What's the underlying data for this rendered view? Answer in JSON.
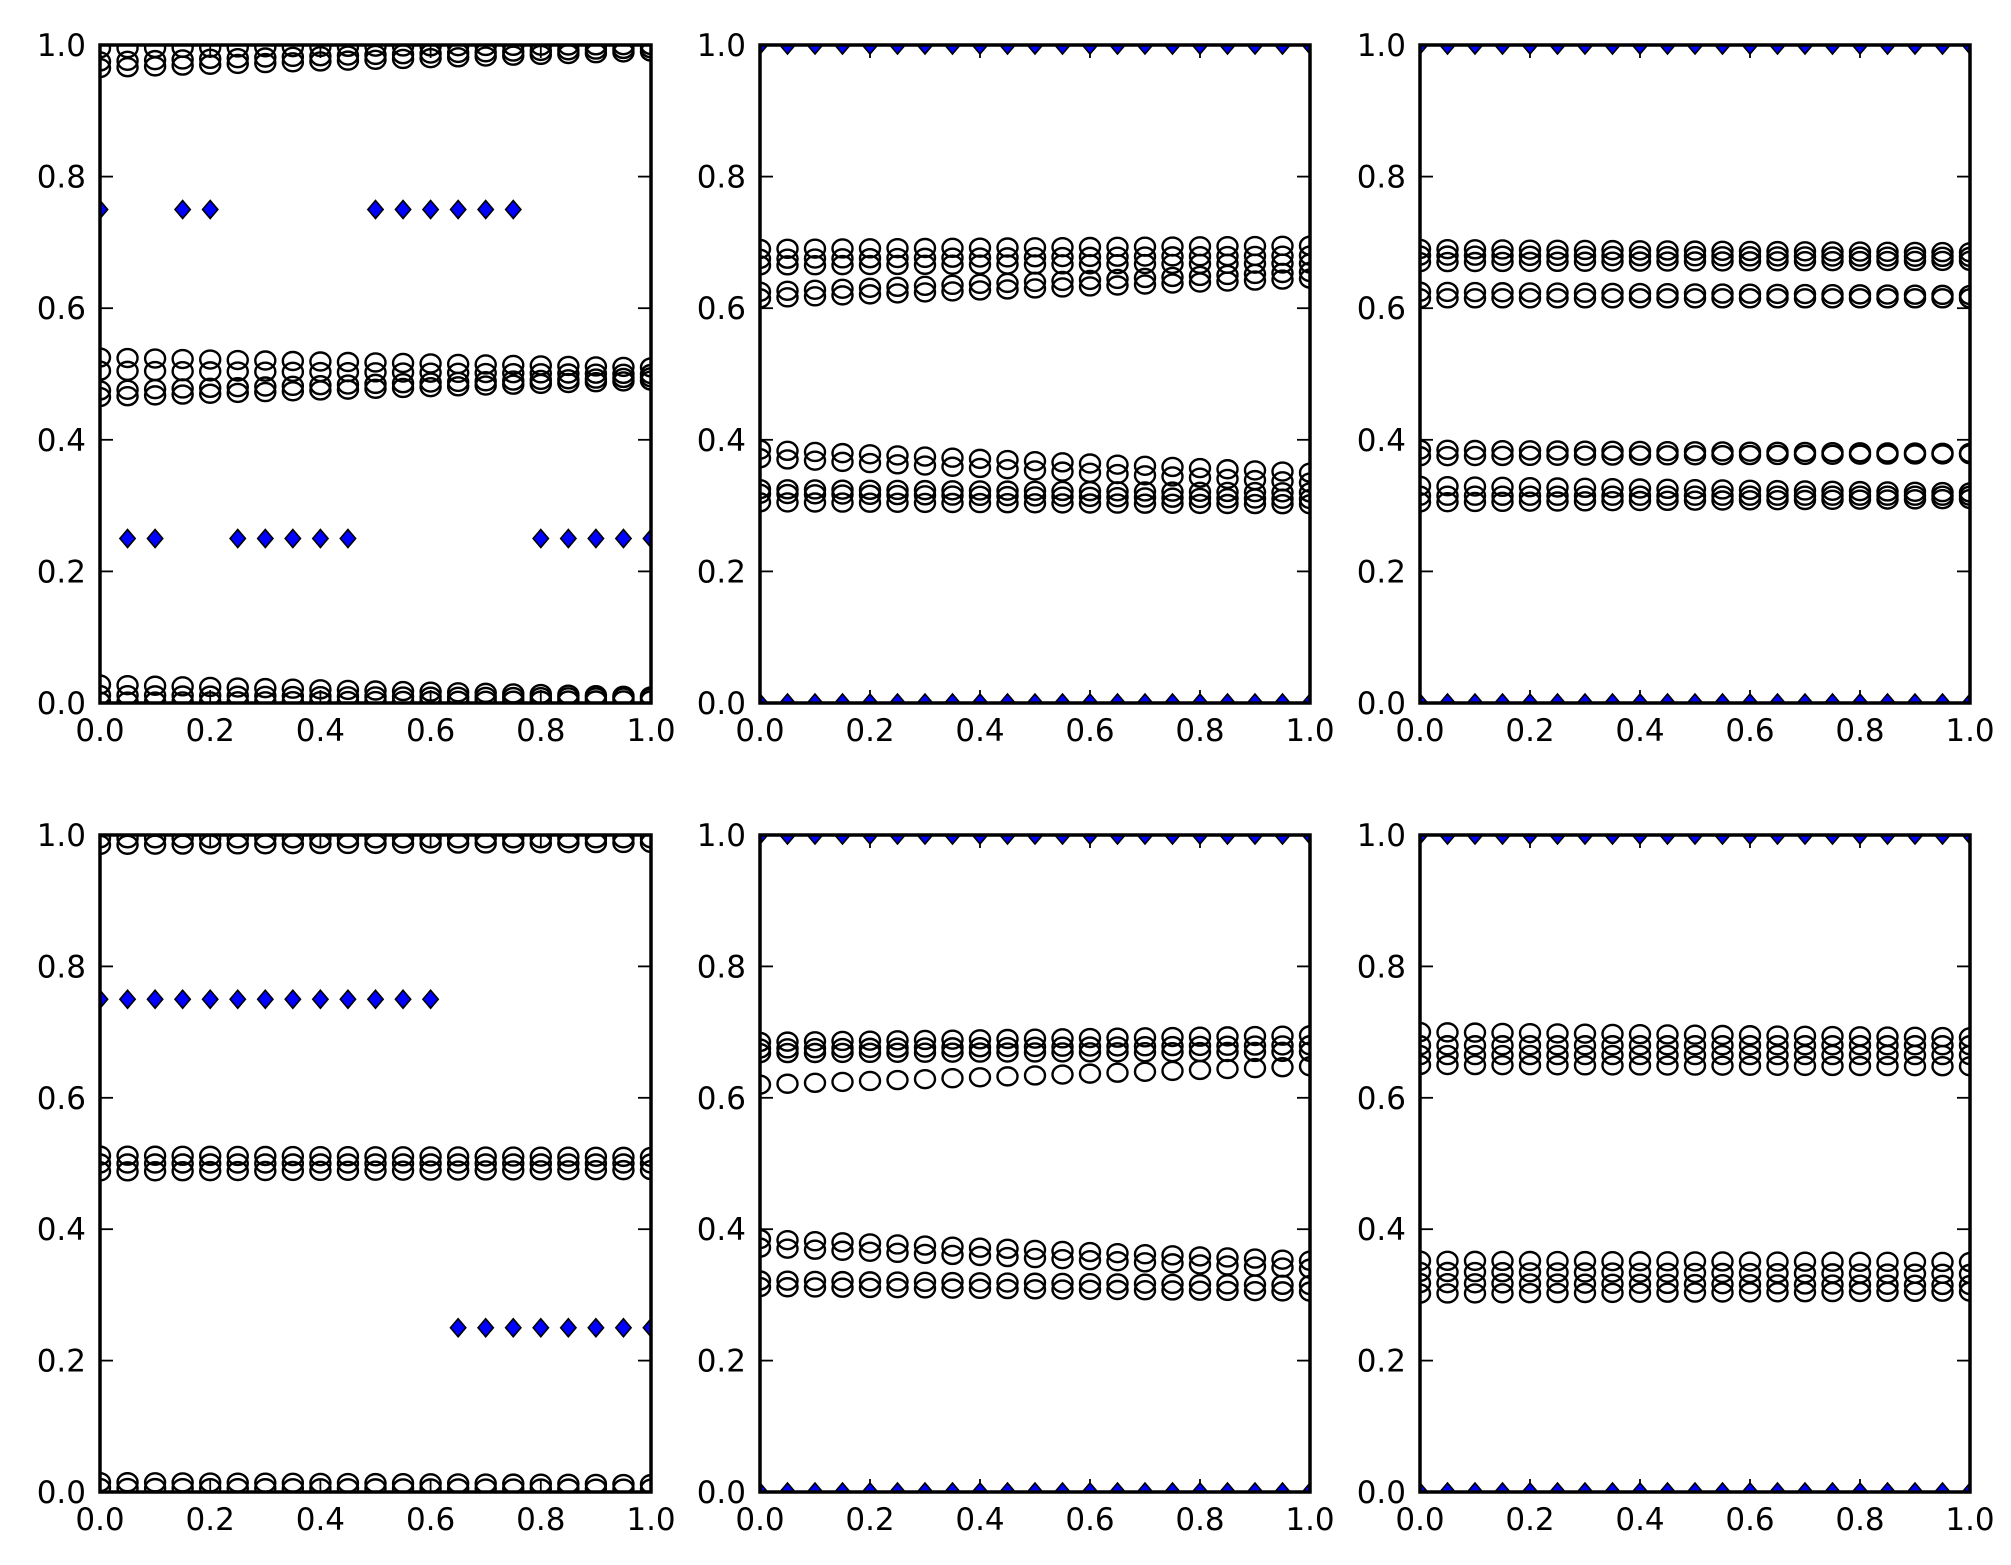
{
  "chart_data": [
    {
      "type": "scatter",
      "panel": "top-left",
      "xlim": [
        0,
        1
      ],
      "ylim": [
        0,
        1
      ],
      "xticks": [
        "0.0",
        "0.2",
        "0.4",
        "0.6",
        "0.8",
        "1.0"
      ],
      "yticks": [
        "0.0",
        "0.2",
        "0.4",
        "0.6",
        "0.8",
        "1.0"
      ],
      "x": [
        0,
        0.05,
        0.1,
        0.15,
        0.2,
        0.25,
        0.3,
        0.35,
        0.4,
        0.45,
        0.5,
        0.55,
        0.6,
        0.65,
        0.7,
        0.75,
        0.8,
        0.85,
        0.9,
        0.95,
        1.0
      ],
      "series": [
        {
          "marker": "circle",
          "start": 0.965,
          "end": 0.99
        },
        {
          "marker": "circle",
          "start": 0.975,
          "end": 0.995
        },
        {
          "marker": "circle",
          "start": 0.995,
          "end": 1.0
        },
        {
          "marker": "circle",
          "start": 0.525,
          "end": 0.51
        },
        {
          "marker": "circle",
          "start": 0.505,
          "end": 0.5
        },
        {
          "marker": "circle",
          "start": 0.465,
          "end": 0.49
        },
        {
          "marker": "circle",
          "start": 0.475,
          "end": 0.495
        },
        {
          "marker": "circle",
          "start": 0.028,
          "end": 0.01
        },
        {
          "marker": "circle",
          "start": 0.012,
          "end": 0.008
        },
        {
          "marker": "circle",
          "start": 0.002,
          "end": 0.004
        },
        {
          "marker": "diamond",
          "y": [
            0.75,
            0.25,
            0.25,
            0.75,
            0.75,
            0.25,
            0.25,
            0.25,
            0.25,
            0.25,
            0.75,
            0.75,
            0.75,
            0.75,
            0.75,
            0.75,
            0.25,
            0.25,
            0.25,
            0.25,
            0.25
          ]
        }
      ]
    },
    {
      "type": "scatter",
      "panel": "top-middle",
      "xlim": [
        0,
        1
      ],
      "ylim": [
        0,
        1
      ],
      "xticks": [
        "0.0",
        "0.2",
        "0.4",
        "0.6",
        "0.8",
        "1.0"
      ],
      "yticks": [
        "0.0",
        "0.2",
        "0.4",
        "0.6",
        "0.8",
        "1.0"
      ],
      "x": [
        0,
        0.05,
        0.1,
        0.15,
        0.2,
        0.25,
        0.3,
        0.35,
        0.4,
        0.45,
        0.5,
        0.55,
        0.6,
        0.65,
        0.7,
        0.75,
        0.8,
        0.85,
        0.9,
        0.95,
        1.0
      ],
      "series": [
        {
          "marker": "circle",
          "start": 0.69,
          "end": 0.695
        },
        {
          "marker": "circle",
          "start": 0.675,
          "end": 0.68
        },
        {
          "marker": "circle",
          "start": 0.665,
          "end": 0.668
        },
        {
          "marker": "circle",
          "start": 0.625,
          "end": 0.655
        },
        {
          "marker": "circle",
          "start": 0.615,
          "end": 0.645
        },
        {
          "marker": "circle",
          "start": 0.385,
          "end": 0.35
        },
        {
          "marker": "circle",
          "start": 0.372,
          "end": 0.335
        },
        {
          "marker": "circle",
          "start": 0.325,
          "end": 0.32
        },
        {
          "marker": "circle",
          "start": 0.318,
          "end": 0.31
        },
        {
          "marker": "circle",
          "start": 0.305,
          "end": 0.302
        },
        {
          "marker": "diamond",
          "y": [
            1,
            1,
            1,
            1,
            1,
            1,
            1,
            1,
            1,
            1,
            1,
            1,
            1,
            1,
            1,
            1,
            1,
            1,
            1,
            1,
            1
          ]
        },
        {
          "marker": "diamond",
          "y": [
            0,
            0,
            0,
            0,
            0,
            0,
            0,
            0,
            0,
            0,
            0,
            0,
            0,
            0,
            0,
            0,
            0,
            0,
            0,
            0,
            0
          ]
        }
      ]
    },
    {
      "type": "scatter",
      "panel": "top-right",
      "xlim": [
        0,
        1
      ],
      "ylim": [
        0,
        1
      ],
      "xticks": [
        "0.0",
        "0.2",
        "0.4",
        "0.6",
        "0.8",
        "1.0"
      ],
      "yticks": [
        "0.0",
        "0.2",
        "0.4",
        "0.6",
        "0.8",
        "1.0"
      ],
      "x": [
        0,
        0.05,
        0.1,
        0.15,
        0.2,
        0.25,
        0.3,
        0.35,
        0.4,
        0.45,
        0.5,
        0.55,
        0.6,
        0.65,
        0.7,
        0.75,
        0.8,
        0.85,
        0.9,
        0.95,
        1.0
      ],
      "series": [
        {
          "marker": "circle",
          "start": 0.69,
          "end": 0.685
        },
        {
          "marker": "circle",
          "start": 0.68,
          "end": 0.678
        },
        {
          "marker": "circle",
          "start": 0.67,
          "end": 0.672
        },
        {
          "marker": "circle",
          "start": 0.625,
          "end": 0.62
        },
        {
          "marker": "circle",
          "start": 0.615,
          "end": 0.615
        },
        {
          "marker": "circle",
          "start": 0.385,
          "end": 0.38
        },
        {
          "marker": "circle",
          "start": 0.375,
          "end": 0.378
        },
        {
          "marker": "circle",
          "start": 0.33,
          "end": 0.32
        },
        {
          "marker": "circle",
          "start": 0.315,
          "end": 0.315
        },
        {
          "marker": "circle",
          "start": 0.305,
          "end": 0.31
        },
        {
          "marker": "diamond",
          "y": [
            1,
            1,
            1,
            1,
            1,
            1,
            1,
            1,
            1,
            1,
            1,
            1,
            1,
            1,
            1,
            1,
            1,
            1,
            1,
            1,
            1
          ]
        },
        {
          "marker": "diamond",
          "y": [
            0,
            0,
            0,
            0,
            0,
            0,
            0,
            0,
            0,
            0,
            0,
            0,
            0,
            0,
            0,
            0,
            0,
            0,
            0,
            0,
            0
          ]
        }
      ]
    },
    {
      "type": "scatter",
      "panel": "bottom-left",
      "xlim": [
        0,
        1
      ],
      "ylim": [
        0,
        1
      ],
      "xticks": [
        "0.0",
        "0.2",
        "0.4",
        "0.6",
        "0.8",
        "1.0"
      ],
      "yticks": [
        "0.0",
        "0.2",
        "0.4",
        "0.6",
        "0.8",
        "1.0"
      ],
      "x": [
        0,
        0.05,
        0.1,
        0.15,
        0.2,
        0.25,
        0.3,
        0.35,
        0.4,
        0.45,
        0.5,
        0.55,
        0.6,
        0.65,
        0.7,
        0.75,
        0.8,
        0.85,
        0.9,
        0.95,
        1.0
      ],
      "series": [
        {
          "marker": "circle",
          "start": 0.995,
          "end": 0.995
        },
        {
          "marker": "circle",
          "start": 0.985,
          "end": 0.988
        },
        {
          "marker": "circle",
          "start": 0.512,
          "end": 0.51
        },
        {
          "marker": "circle",
          "start": 0.5,
          "end": 0.5
        },
        {
          "marker": "circle",
          "start": 0.488,
          "end": 0.49
        },
        {
          "marker": "circle",
          "start": 0.015,
          "end": 0.012
        },
        {
          "marker": "circle",
          "start": 0.006,
          "end": 0.005
        },
        {
          "marker": "diamond",
          "y": [
            0.75,
            0.75,
            0.75,
            0.75,
            0.75,
            0.75,
            0.75,
            0.75,
            0.75,
            0.75,
            0.75,
            0.75,
            0.75,
            0.25,
            0.25,
            0.25,
            0.25,
            0.25,
            0.25,
            0.25,
            0.25
          ]
        }
      ]
    },
    {
      "type": "scatter",
      "panel": "bottom-middle",
      "xlim": [
        0,
        1
      ],
      "ylim": [
        0,
        1
      ],
      "xticks": [
        "0.0",
        "0.2",
        "0.4",
        "0.6",
        "0.8",
        "1.0"
      ],
      "yticks": [
        "0.0",
        "0.2",
        "0.4",
        "0.6",
        "0.8",
        "1.0"
      ],
      "x": [
        0,
        0.05,
        0.1,
        0.15,
        0.2,
        0.25,
        0.3,
        0.35,
        0.4,
        0.45,
        0.5,
        0.55,
        0.6,
        0.65,
        0.7,
        0.75,
        0.8,
        0.85,
        0.9,
        0.95,
        1.0
      ],
      "series": [
        {
          "marker": "circle",
          "start": 0.685,
          "end": 0.695
        },
        {
          "marker": "circle",
          "start": 0.675,
          "end": 0.68
        },
        {
          "marker": "circle",
          "start": 0.668,
          "end": 0.67
        },
        {
          "marker": "circle",
          "start": 0.62,
          "end": 0.648
        },
        {
          "marker": "circle",
          "start": 0.385,
          "end": 0.352
        },
        {
          "marker": "circle",
          "start": 0.372,
          "end": 0.34
        },
        {
          "marker": "circle",
          "start": 0.322,
          "end": 0.315
        },
        {
          "marker": "circle",
          "start": 0.312,
          "end": 0.305
        },
        {
          "marker": "diamond",
          "y": [
            1,
            1,
            1,
            1,
            1,
            1,
            1,
            1,
            1,
            1,
            1,
            1,
            1,
            1,
            1,
            1,
            1,
            1,
            1,
            1,
            1
          ]
        },
        {
          "marker": "diamond",
          "y": [
            0,
            0,
            0,
            0,
            0,
            0,
            0,
            0,
            0,
            0,
            0,
            0,
            0,
            0,
            0,
            0,
            0,
            0,
            0,
            0,
            0
          ]
        }
      ]
    },
    {
      "type": "scatter",
      "panel": "bottom-right",
      "xlim": [
        0,
        1
      ],
      "ylim": [
        0,
        1
      ],
      "xticks": [
        "0.0",
        "0.2",
        "0.4",
        "0.6",
        "0.8",
        "1.0"
      ],
      "yticks": [
        "0.0",
        "0.2",
        "0.4",
        "0.6",
        "0.8",
        "1.0"
      ],
      "x": [
        0,
        0.05,
        0.1,
        0.15,
        0.2,
        0.25,
        0.3,
        0.35,
        0.4,
        0.45,
        0.5,
        0.55,
        0.6,
        0.65,
        0.7,
        0.75,
        0.8,
        0.85,
        0.9,
        0.95,
        1.0
      ],
      "series": [
        {
          "marker": "circle",
          "start": 0.7,
          "end": 0.692
        },
        {
          "marker": "circle",
          "start": 0.68,
          "end": 0.68
        },
        {
          "marker": "circle",
          "start": 0.665,
          "end": 0.665
        },
        {
          "marker": "circle",
          "start": 0.65,
          "end": 0.648
        },
        {
          "marker": "circle",
          "start": 0.352,
          "end": 0.35
        },
        {
          "marker": "circle",
          "start": 0.335,
          "end": 0.332
        },
        {
          "marker": "circle",
          "start": 0.318,
          "end": 0.315
        },
        {
          "marker": "circle",
          "start": 0.302,
          "end": 0.305
        },
        {
          "marker": "diamond",
          "y": [
            1,
            1,
            1,
            1,
            1,
            1,
            1,
            1,
            1,
            1,
            1,
            1,
            1,
            1,
            1,
            1,
            1,
            1,
            1,
            1,
            1
          ]
        },
        {
          "marker": "diamond",
          "y": [
            0,
            0,
            0,
            0,
            0,
            0,
            0,
            0,
            0,
            0,
            0,
            0,
            0,
            0,
            0,
            0,
            0,
            0,
            0,
            0,
            0
          ]
        }
      ]
    }
  ],
  "colors": {
    "diamond_fill": "#0000ff",
    "marker_edge": "#000000",
    "background": "#ffffff"
  }
}
